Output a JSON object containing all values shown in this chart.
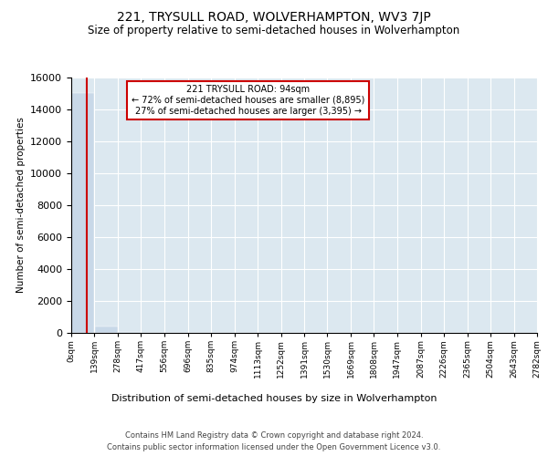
{
  "title": "221, TRYSULL ROAD, WOLVERHAMPTON, WV3 7JP",
  "subtitle": "Size of property relative to semi-detached houses in Wolverhampton",
  "xlabel_dist": "Distribution of semi-detached houses by size in Wolverhampton",
  "ylabel": "Number of semi-detached properties",
  "property_size": 94,
  "annotation_line1": "221 TRYSULL ROAD: 94sqm",
  "annotation_line2": "← 72% of semi-detached houses are smaller (8,895)",
  "annotation_line3": "27% of semi-detached houses are larger (3,395) →",
  "bin_edges": [
    0,
    139,
    278,
    417,
    556,
    696,
    835,
    974,
    1113,
    1252,
    1391,
    1530,
    1669,
    1808,
    1947,
    2087,
    2226,
    2365,
    2504,
    2643,
    2782
  ],
  "bin_labels": [
    "0sqm",
    "139sqm",
    "278sqm",
    "417sqm",
    "556sqm",
    "696sqm",
    "835sqm",
    "974sqm",
    "1113sqm",
    "1252sqm",
    "1391sqm",
    "1530sqm",
    "1669sqm",
    "1808sqm",
    "1947sqm",
    "2087sqm",
    "2226sqm",
    "2365sqm",
    "2504sqm",
    "2643sqm",
    "2782sqm"
  ],
  "bar_values": [
    15000,
    380,
    60,
    20,
    10,
    5,
    3,
    3,
    3,
    3,
    3,
    3,
    3,
    3,
    3,
    3,
    3,
    3,
    3,
    3
  ],
  "bar_color": "#c8d8e8",
  "property_line_color": "#cc0000",
  "annotation_box_color": "#cc0000",
  "background_color": "#dce8f0",
  "ylim": [
    0,
    16000
  ],
  "yticks": [
    0,
    2000,
    4000,
    6000,
    8000,
    10000,
    12000,
    14000,
    16000
  ],
  "footer_line1": "Contains HM Land Registry data © Crown copyright and database right 2024.",
  "footer_line2": "Contains public sector information licensed under the Open Government Licence v3.0."
}
